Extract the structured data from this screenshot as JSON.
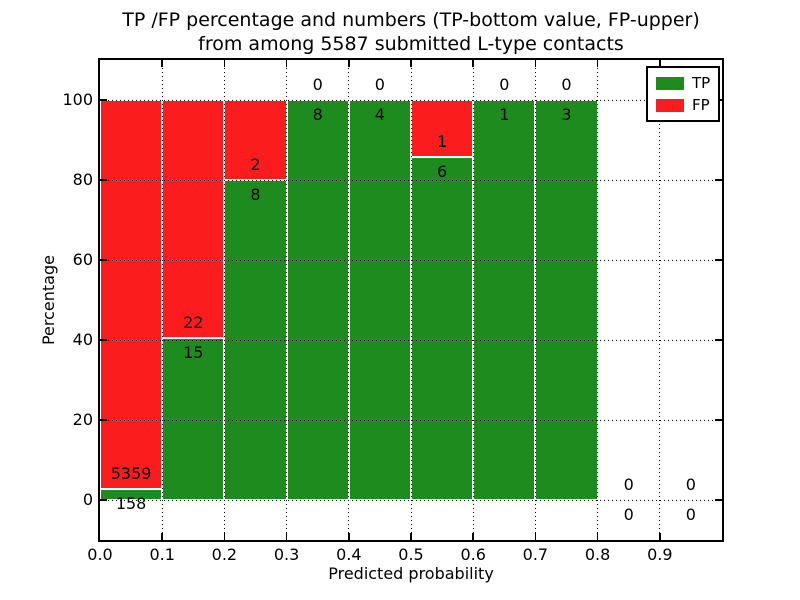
{
  "title": {
    "line1": "TP /FP percentage and numbers (TP-bottom value, FP-upper)",
    "line2": "from among 5587 submitted L-type contacts"
  },
  "chart_data": {
    "type": "bar",
    "subtype": "stacked-percentage",
    "title": "TP /FP percentage and numbers (TP-bottom value, FP-upper) from among 5587 submitted L-type contacts",
    "xlabel": "Predicted probability",
    "ylabel": "Percentage",
    "xlim": [
      0.0,
      1.0
    ],
    "ylim": [
      -10,
      110
    ],
    "grid": "dotted",
    "x_tick_labels": [
      "0.0",
      "0.1",
      "0.2",
      "0.3",
      "0.4",
      "0.5",
      "0.6",
      "0.7",
      "0.8",
      "0.9"
    ],
    "y_ticks": [
      0,
      20,
      40,
      60,
      80,
      100
    ],
    "y_tick_labels": [
      "0",
      "20",
      "40",
      "60",
      "80",
      "100"
    ],
    "colors": {
      "tp": "#1e8b1e",
      "fp": "#fb1d1d",
      "bar_edge": "#ffffff"
    },
    "legend": {
      "position": "upper right",
      "entries": [
        {
          "label": "TP",
          "color": "#1e8b1e"
        },
        {
          "label": "FP",
          "color": "#fb1d1d"
        }
      ]
    },
    "annotation_rule": "TP count below green/red boundary, FP count above it",
    "bins": [
      {
        "x_start": 0.0,
        "x_end": 0.1,
        "tp": 158,
        "fp": 5359
      },
      {
        "x_start": 0.1,
        "x_end": 0.2,
        "tp": 15,
        "fp": 22
      },
      {
        "x_start": 0.2,
        "x_end": 0.3,
        "tp": 8,
        "fp": 2
      },
      {
        "x_start": 0.3,
        "x_end": 0.4,
        "tp": 8,
        "fp": 0
      },
      {
        "x_start": 0.4,
        "x_end": 0.5,
        "tp": 4,
        "fp": 0
      },
      {
        "x_start": 0.5,
        "x_end": 0.6,
        "tp": 6,
        "fp": 1
      },
      {
        "x_start": 0.6,
        "x_end": 0.7,
        "tp": 1,
        "fp": 0
      },
      {
        "x_start": 0.7,
        "x_end": 0.8,
        "tp": 3,
        "fp": 0
      },
      {
        "x_start": 0.8,
        "x_end": 0.9,
        "tp": 0,
        "fp": 0
      },
      {
        "x_start": 0.9,
        "x_end": 1.0,
        "tp": 0,
        "fp": 0
      }
    ],
    "total_submitted": 5587
  }
}
